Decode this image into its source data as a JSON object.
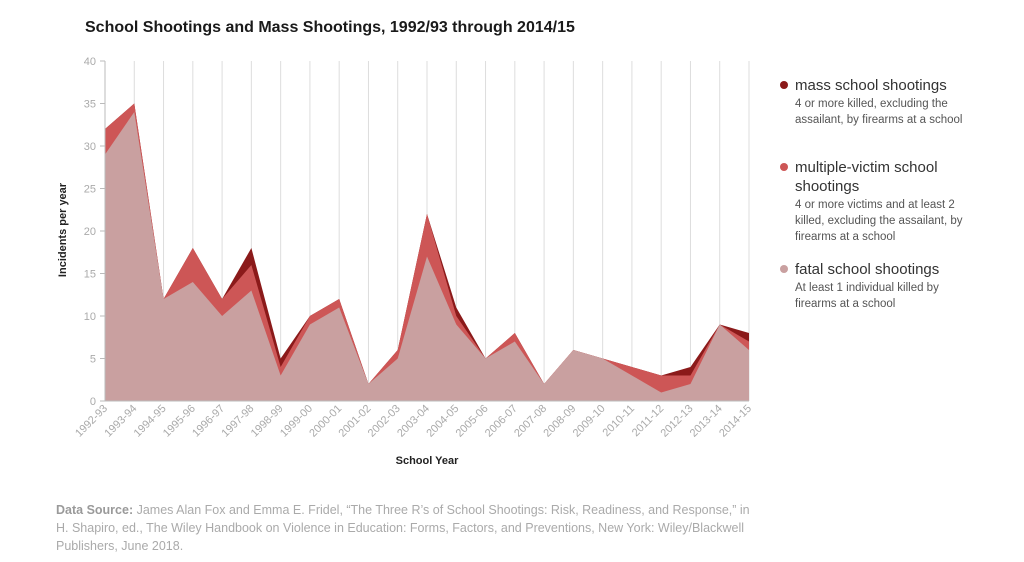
{
  "chart_data": {
    "type": "area",
    "title": "School Shootings and Mass Shootings, 1992/93 through 2014/15",
    "xlabel": "School Year",
    "ylabel": "Incidents per year",
    "ylim": [
      0,
      40
    ],
    "yticks": [
      "0",
      "5",
      "10",
      "15",
      "20",
      "25",
      "30",
      "35",
      "40"
    ],
    "categories": [
      "1992-93",
      "1993-94",
      "1994-95",
      "1995-96",
      "1996-97",
      "1997-98",
      "1998-99",
      "1999-00",
      "2000-01",
      "2001-02",
      "2002-03",
      "2003-04",
      "2004-05",
      "2005-06",
      "2006-07",
      "2007-08",
      "2008-09",
      "2009-10",
      "2010-11",
      "2011-12",
      "2012-13",
      "2013-14",
      "2014-15"
    ],
    "series": [
      {
        "name": "fatal school shootings",
        "color": "#c9a0a0",
        "values": [
          29,
          34,
          12,
          14,
          10,
          13,
          3,
          9,
          11,
          2,
          5,
          17,
          9,
          5,
          7,
          2,
          6,
          5,
          3,
          1,
          2,
          9,
          6
        ]
      },
      {
        "name": "multiple-victim school shootings",
        "color": "#cd5656",
        "values": [
          32,
          35,
          12,
          18,
          12,
          16,
          4,
          10,
          12,
          2,
          6,
          22,
          10,
          5,
          8,
          2,
          6,
          5,
          4,
          3,
          3,
          9,
          7
        ]
      },
      {
        "name": "mass school shootings",
        "color": "#8b1a1a",
        "values": [
          32,
          35,
          12,
          18,
          12,
          18,
          5,
          10,
          12,
          2,
          6,
          22,
          11,
          5,
          8,
          2,
          6,
          5,
          4,
          3,
          4,
          9,
          8
        ]
      }
    ],
    "legend_placement": "right",
    "grid": true
  },
  "legend": [
    {
      "name": "mass school shootings",
      "desc": "4 or more killed, excluding the assailant, by firearms at a school",
      "color": "#8b1a1a"
    },
    {
      "name": "multiple-victim school shootings",
      "desc": "4 or more victims and at least 2 killed, excluding the assailant, by firearms at a school",
      "color": "#cd5656"
    },
    {
      "name": "fatal school shootings",
      "desc": "At least 1 individual killed by firearms at a school",
      "color": "#c9a0a0"
    }
  ],
  "source": {
    "label": "Data Source:",
    "text": " James Alan Fox and Emma E. Fridel, “The Three R’s of School Shootings: Risk, Readiness, and Response,” in H. Shapiro, ed., The Wiley Handbook on Violence in Education: Forms, Factors, and Preventions, New York: Wiley/Blackwell Publishers, June 2018."
  }
}
